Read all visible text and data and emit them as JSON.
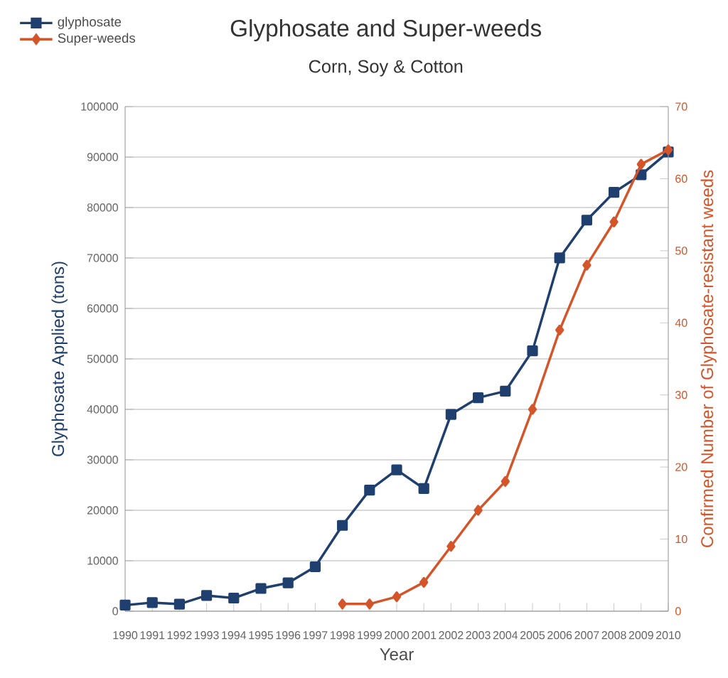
{
  "chart_data": {
    "type": "line",
    "title": "Glyphosate and Super-weeds",
    "subtitle": "Corn, Soy & Cotton",
    "xlabel": "Year",
    "ylabel": "Glyphosate Applied (tons)",
    "y2label": "Confirmed Number of Glyphosate-resistant weeds",
    "xlim": [
      1990,
      2010
    ],
    "xticks": [
      1990,
      1991,
      1992,
      1993,
      1994,
      1995,
      1996,
      1997,
      1998,
      1999,
      2000,
      2001,
      2002,
      2003,
      2004,
      2005,
      2006,
      2007,
      2008,
      2009,
      2010
    ],
    "ylim": [
      0,
      100000
    ],
    "yticks": [
      0,
      10000,
      20000,
      30000,
      40000,
      50000,
      60000,
      70000,
      80000,
      90000,
      100000
    ],
    "y2lim": [
      0,
      70
    ],
    "y2ticks": [
      0,
      10,
      20,
      30,
      40,
      50,
      60,
      70
    ],
    "grid": "y",
    "legend": "top left",
    "series": [
      {
        "name": "glyphosate",
        "color": "#1f3f6e",
        "marker": "square",
        "x": [
          1990,
          1991,
          1992,
          1993,
          1994,
          1995,
          1996,
          1997,
          1998,
          1999,
          2000,
          2001,
          2002,
          2003,
          2004,
          2005,
          2006,
          2007,
          2008,
          2009,
          2010
        ],
        "values": [
          1200,
          1700,
          1400,
          3100,
          2600,
          4500,
          5600,
          8800,
          17000,
          24000,
          28000,
          24300,
          39000,
          42300,
          43600,
          51600,
          70000,
          77500,
          83000,
          86500,
          91000
        ]
      },
      {
        "name": "Super-weeds",
        "color": "#d4552a",
        "marker": "diamond",
        "axis": "y2",
        "x": [
          1998,
          1999,
          2000,
          2001,
          2002,
          2003,
          2004,
          2005,
          2006,
          2007,
          2008,
          2009,
          2010
        ],
        "values": [
          1,
          1,
          2,
          4,
          9,
          14,
          18,
          28,
          39,
          48,
          54,
          62,
          64
        ]
      }
    ]
  }
}
